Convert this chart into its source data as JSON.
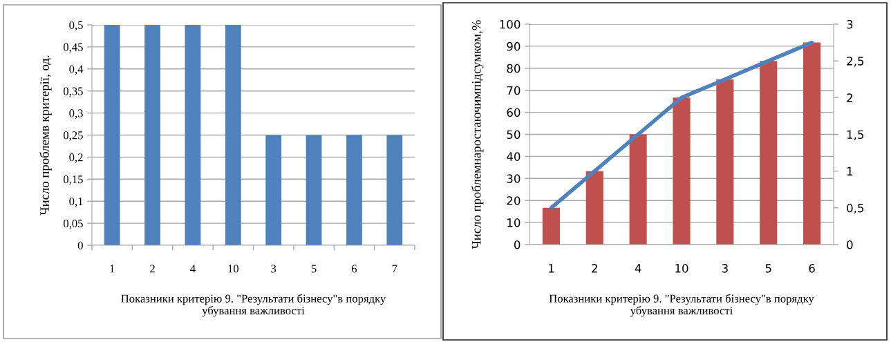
{
  "chart_data": [
    {
      "type": "bar",
      "categories": [
        "1",
        "2",
        "4",
        "10",
        "3",
        "5",
        "6",
        "7"
      ],
      "values": [
        0.5,
        0.5,
        0.5,
        0.5,
        0.25,
        0.25,
        0.25,
        0.25
      ],
      "color": "#4f81bd",
      "xlabel": "Показники критерію 9. \"Результати бізнесу\"в порядку\nубування важливості",
      "ylabel": "Число проблемв критерії, од.",
      "ylim": [
        0,
        0.5
      ],
      "yticks": [
        0,
        {
          "value": 0.05,
          "label": "0,05"
        },
        {
          "value": 0.1,
          "label": "0,1"
        },
        {
          "value": 0.15,
          "label": "0,15"
        },
        {
          "value": 0.2,
          "label": "0,2"
        },
        {
          "value": 0.25,
          "label": "0,25"
        },
        {
          "value": 0.3,
          "label": "0,3"
        },
        {
          "value": 0.35,
          "label": "0,35"
        },
        {
          "value": 0.4,
          "label": "0,4"
        },
        {
          "value": 0.45,
          "label": "0,45"
        },
        {
          "value": 0.5,
          "label": "0,5"
        }
      ],
      "grid": "y"
    },
    {
      "type": "bar",
      "categories": [
        "1",
        "2",
        "4",
        "10",
        "3",
        "5",
        "6"
      ],
      "series": [
        {
          "type": "bar",
          "color": "#c0504d",
          "values": [
            16.7,
            33.3,
            50,
            66.7,
            75,
            83.3,
            91.7
          ]
        },
        {
          "type": "line",
          "axis": "y2",
          "color": "#4f81bd",
          "values": [
            0.5,
            1,
            1.5,
            2,
            2.25,
            2.5,
            2.75
          ]
        }
      ],
      "xlabel": "Показники критерію 9. \"Результати бізнесу\"в порядку\nубування важливості",
      "ylabel": "Число проблемнаростаючимпідсумком,%",
      "ylim": [
        0,
        100
      ],
      "yticks": [
        0,
        10,
        20,
        30,
        40,
        50,
        60,
        70,
        80,
        90,
        100
      ],
      "y2lim": [
        0,
        3
      ],
      "y2ticks": [
        0,
        {
          "value": 0.5,
          "label": "0,5"
        },
        1,
        {
          "value": 1.5,
          "label": "1,5"
        },
        2,
        {
          "value": 2.5,
          "label": "2,5"
        },
        3
      ],
      "grid": "y"
    }
  ]
}
